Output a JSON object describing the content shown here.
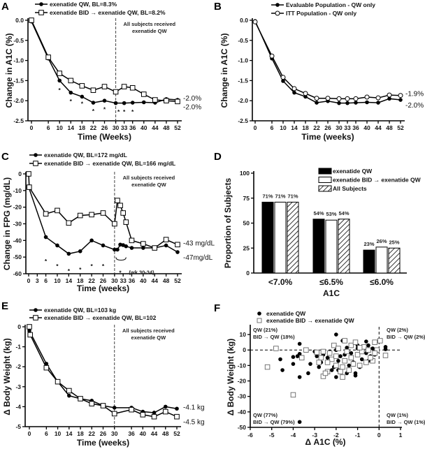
{
  "chart_data": [
    {
      "panel": "A",
      "type": "line",
      "xlabel": "Time (Weeks)",
      "ylabel": "Change in  A1C (%)",
      "xlim": [
        0,
        52
      ],
      "ylim": [
        -2.5,
        0
      ],
      "xticks": [
        0,
        6,
        10,
        14,
        18,
        22,
        26,
        30,
        33,
        36,
        40,
        44,
        48,
        52
      ],
      "yticks": [
        0,
        -0.5,
        -1,
        -1.5,
        -2,
        -2.5
      ],
      "ytick_labels": [
        "0.0",
        "-0.5",
        "-1.0",
        "-1.5",
        "-2.0",
        "-2.5"
      ],
      "vline": {
        "x": 30,
        "text": [
          "All subjects received",
          "exenatide QW"
        ]
      },
      "series": [
        {
          "name": "exenatide QW, BL=8.3%",
          "marker": "filled-circle",
          "x": [
            0,
            6,
            10,
            14,
            18,
            22,
            26,
            30,
            33,
            36,
            40,
            44,
            48,
            52
          ],
          "y": [
            -0.03,
            -0.95,
            -1.5,
            -1.8,
            -1.9,
            -2.05,
            -2.0,
            -2.06,
            -2.06,
            -2.05,
            -2.04,
            -2.05,
            -1.96,
            -1.98
          ],
          "end_label": "-2.0%"
        },
        {
          "name": "exenatide BID → exenatide QW, BL=8.2%",
          "marker": "open-square",
          "x": [
            0,
            6,
            10,
            14,
            18,
            22,
            26,
            30,
            33,
            36,
            40,
            44,
            48,
            52
          ],
          "y": [
            0,
            -0.92,
            -1.32,
            -1.5,
            -1.63,
            -1.74,
            -1.65,
            -1.78,
            -1.65,
            -1.68,
            -1.84,
            -1.98,
            -2.0,
            -2.02
          ],
          "end_label": "-2.0%"
        }
      ],
      "asterisks": [
        [
          10,
          -1.72
        ],
        [
          14,
          -2.0
        ],
        [
          18,
          -2.06
        ],
        [
          22,
          -2.24
        ],
        [
          26,
          -2.2
        ],
        [
          31,
          -2.26
        ],
        [
          33,
          -2.26
        ],
        [
          36,
          -2.26
        ]
      ]
    },
    {
      "panel": "B",
      "type": "line",
      "xlabel": "Time (weeks)",
      "ylabel": "Change in A1C (%)",
      "xlim": [
        0,
        52
      ],
      "ylim": [
        -2.5,
        0
      ],
      "xticks": [
        0,
        6,
        10,
        14,
        18,
        22,
        26,
        30,
        33,
        36,
        40,
        44,
        48,
        52
      ],
      "yticks": [
        0,
        -0.5,
        -1,
        -1.5,
        -2,
        -2.5
      ],
      "ytick_labels": [
        "0.0",
        "-0.5",
        "-1.0",
        "-1.5",
        "-2.0",
        "-2.5"
      ],
      "series": [
        {
          "name": "Evaluable Population - QW only",
          "marker": "filled-circle",
          "x": [
            0,
            6,
            10,
            14,
            18,
            22,
            26,
            30,
            33,
            36,
            40,
            44,
            48,
            52
          ],
          "y": [
            -0.02,
            -0.95,
            -1.51,
            -1.8,
            -1.9,
            -2.05,
            -2.01,
            -2.06,
            -2.06,
            -2.05,
            -2.04,
            -2.05,
            -1.95,
            -1.98
          ],
          "end_label": "-2.0%"
        },
        {
          "name": "ITT Population - QW only",
          "marker": "open-circle",
          "x": [
            0,
            6,
            10,
            14,
            18,
            22,
            26,
            30,
            33,
            36,
            40,
            44,
            48,
            52
          ],
          "y": [
            -0.04,
            -0.89,
            -1.42,
            -1.7,
            -1.82,
            -1.94,
            -1.94,
            -1.95,
            -1.95,
            -1.95,
            -1.91,
            -1.93,
            -1.86,
            -1.87
          ],
          "end_label": "-1.9%"
        }
      ]
    },
    {
      "panel": "C",
      "type": "line",
      "xlabel": "Time  (weeks)",
      "ylabel": "Change in FPG (mg/dL)",
      "xlim": [
        0,
        52
      ],
      "ylim": [
        -60,
        0
      ],
      "xticks": [
        0,
        3,
        6,
        10,
        14,
        18,
        22,
        26,
        30,
        33,
        36,
        40,
        44,
        48,
        52
      ],
      "yticks": [
        0,
        -10,
        -20,
        -30,
        -40,
        -50,
        -60
      ],
      "ytick_labels": [
        "0",
        "-10",
        "-20",
        "-30",
        "-40",
        "-50",
        "-60"
      ],
      "vline": {
        "x": 30,
        "text": [
          "All subjects received",
          "exenatide QW"
        ]
      },
      "series": [
        {
          "name": "exenatide QW, BL=172 mg/dL",
          "marker": "filled-circle",
          "x": [
            0,
            6,
            10,
            14,
            18,
            22,
            26,
            30,
            31,
            32,
            33,
            34,
            36,
            40,
            44,
            48,
            52
          ],
          "y": [
            -8,
            -38,
            -43,
            -48,
            -46.5,
            -40,
            -43,
            -45.5,
            -45.5,
            -42.5,
            -42.8,
            -43.5,
            -44.5,
            -44.5,
            -44.5,
            -43,
            -47
          ],
          "end_label": "-47mg/dL"
        },
        {
          "name": "exenatide  BID →  exenatide  QW, BL=166 mg/dL",
          "marker": "open-square",
          "x": [
            0,
            0.2,
            6,
            10,
            14,
            18,
            22,
            26,
            30,
            31,
            32,
            33,
            34,
            36,
            40,
            44,
            48,
            52
          ],
          "y": [
            0,
            -8,
            -24,
            -22,
            -29.5,
            -25,
            -24.5,
            -23.5,
            -30,
            -16,
            -19,
            -23.5,
            -29,
            -40,
            -42,
            -44.5,
            -39.5,
            -42.5
          ],
          "end_label": "-43 mg/dL"
        }
      ],
      "asterisks": [
        [
          6,
          -52
        ],
        [
          10,
          -55
        ],
        [
          14,
          -58
        ],
        [
          18,
          -57
        ],
        [
          22,
          -55
        ],
        [
          26,
          -55
        ],
        [
          32,
          -59
        ]
      ],
      "bracket_note": "(wk 30-34)"
    },
    {
      "panel": "D",
      "type": "bar",
      "xlabel": "A1C",
      "ylabel": "Proportion of  Subjects",
      "ylim": [
        0,
        100
      ],
      "yticks": [
        0,
        25,
        50,
        75,
        100
      ],
      "ytick_labels": [
        "0",
        "25",
        "50",
        "75",
        "100"
      ],
      "categories": [
        "<7.0%",
        "≤6.5%",
        "≤6.0%"
      ],
      "series": [
        {
          "name": "exenatide QW",
          "fill": "solid-black",
          "values": [
            71,
            54,
            23
          ],
          "labels": [
            "71%",
            "54%",
            "23%"
          ]
        },
        {
          "name": "exenatide BID → exenatide QW",
          "fill": "white",
          "values": [
            71,
            53,
            26
          ],
          "labels": [
            "71%",
            "53%",
            "26%"
          ]
        },
        {
          "name": "All Subjects",
          "fill": "hatched",
          "values": [
            71,
            54,
            25
          ],
          "labels": [
            "71%",
            "54%",
            "25%"
          ]
        }
      ],
      "legend": "top-right"
    },
    {
      "panel": "E",
      "type": "line",
      "xlabel": "Time (weeks)",
      "ylabel": "Δ Body Weight (kg)",
      "xlim": [
        0,
        52
      ],
      "ylim": [
        -5,
        0
      ],
      "xticks": [
        0,
        6,
        10,
        14,
        18,
        22,
        26,
        30,
        36,
        40,
        44,
        48,
        52
      ],
      "yticks": [
        0,
        -1,
        -2,
        -3,
        -4,
        -5
      ],
      "ytick_labels": [
        "0",
        "-1",
        "-2",
        "-3",
        "-4",
        "-5"
      ],
      "vline": {
        "x": 30,
        "text": [
          "All subjects received",
          "exenatide QW"
        ]
      },
      "series": [
        {
          "name": "exenatide QW, BL=103 kg",
          "marker": "filled-circle",
          "x": [
            0,
            6,
            10,
            14,
            18,
            22,
            26,
            30,
            36,
            40,
            44,
            48,
            52
          ],
          "y": [
            -0.2,
            -1.85,
            -2.75,
            -3.45,
            -3.6,
            -3.7,
            -3.95,
            -4.05,
            -4.05,
            -4.25,
            -4.3,
            -4.0,
            -4.1
          ],
          "end_label": "-4.1 kg"
        },
        {
          "name": "exenatide BID → exenatide QW, BL=102",
          "marker": "open-square",
          "x": [
            0,
            0.3,
            6,
            10,
            14,
            18,
            22,
            26,
            30,
            36,
            40,
            44,
            48,
            52
          ],
          "y": [
            0,
            -0.4,
            -2.05,
            -2.75,
            -3.2,
            -3.6,
            -3.85,
            -3.95,
            -4.35,
            -4.15,
            -4.4,
            -4.5,
            -4.25,
            -4.5
          ],
          "end_label": "-4.5 kg"
        }
      ]
    },
    {
      "panel": "F",
      "type": "scatter",
      "xlabel": "Δ A1C (%)",
      "ylabel": "Δ Body Weight (kg)",
      "xlim": [
        -6,
        1
      ],
      "ylim": [
        -50,
        15
      ],
      "xticks": [
        -6,
        -5,
        -4,
        -3,
        -2,
        -1,
        0,
        1
      ],
      "xtick_labels": [
        "-6",
        "-5",
        "-4",
        "-3",
        "-2",
        "-1",
        "0",
        "1"
      ],
      "yticks": [
        10,
        0,
        -10,
        -20,
        -30,
        -40,
        -50
      ],
      "ytick_labels": [
        "10",
        "0",
        "-10",
        "-20",
        "-30",
        "-40",
        "-50"
      ],
      "reference_lines": {
        "x": 0,
        "y": 0
      },
      "quadrant_labels": {
        "top_left": [
          "QW (21%)",
          "BID → QW (18%)"
        ],
        "top_right": [
          "QW (2%)",
          "BID → QW (2%)"
        ],
        "bottom_left": [
          "QW (77%)",
          "BID → QW (79%)"
        ],
        "bottom_right": [
          "QW (1%)",
          "BID → QW (1%)"
        ]
      },
      "series": [
        {
          "name": "exenatide QW",
          "marker": "filled-circle",
          "points": [
            [
              -2.0,
              10
            ],
            [
              -3.7,
              4
            ],
            [
              -4.6,
              -6
            ],
            [
              -4.5,
              -13
            ],
            [
              -4,
              -4.5
            ],
            [
              -4,
              -9
            ],
            [
              -3.7,
              -2.5
            ],
            [
              -3.8,
              -4
            ],
            [
              -3.3,
              -15
            ],
            [
              -3.2,
              -9
            ],
            [
              -3.7,
              -17.5
            ],
            [
              -3.7,
              -46.5
            ],
            [
              -2.8,
              -11
            ],
            [
              -3.0,
              -1
            ],
            [
              -2.9,
              -4
            ],
            [
              -2.1,
              -11
            ],
            [
              -2.2,
              -13
            ],
            [
              -2.0,
              -17.5
            ],
            [
              -1.9,
              -13
            ],
            [
              -1.8,
              -14
            ],
            [
              -1.5,
              -15
            ],
            [
              -1.1,
              -15
            ],
            [
              -1.1,
              -16.5
            ],
            [
              -1.7,
              6
            ],
            [
              -0.6,
              5.5
            ],
            [
              -0.5,
              3
            ],
            [
              -2.3,
              -1
            ],
            [
              -2.0,
              0
            ],
            [
              -1.5,
              1.5
            ],
            [
              -1.3,
              -2
            ],
            [
              -1.0,
              1
            ],
            [
              -0.8,
              0
            ],
            [
              -0.4,
              -4
            ],
            [
              -0.2,
              -3
            ],
            [
              -0.3,
              1
            ],
            [
              0.3,
              2
            ],
            [
              0.3,
              0.5
            ],
            [
              -1.2,
              -8
            ],
            [
              -0.5,
              -7
            ],
            [
              -0.8,
              -6
            ],
            [
              -1.6,
              -3
            ],
            [
              -2.6,
              -3
            ],
            [
              -2.4,
              -5
            ],
            [
              -1.9,
              -7
            ],
            [
              -1.4,
              -10
            ],
            [
              -0.9,
              -11
            ],
            [
              -0.6,
              -2
            ],
            [
              -1.0,
              3
            ],
            [
              -2.7,
              -8
            ],
            [
              -1.8,
              -4
            ]
          ]
        },
        {
          "name": "exenatide BID → exenatide QW",
          "marker": "open-square",
          "points": [
            [
              -4.8,
              1
            ],
            [
              -5.2,
              -11
            ],
            [
              -4,
              -29
            ],
            [
              -3.4,
              0
            ],
            [
              -3.6,
              -5
            ],
            [
              -2.6,
              -17
            ],
            [
              -2.4,
              -14
            ],
            [
              -2.5,
              -15
            ],
            [
              -2.8,
              -8
            ],
            [
              -2.9,
              -1.5
            ],
            [
              -2.7,
              -5
            ],
            [
              -2.1,
              3
            ],
            [
              -1.6,
              6
            ],
            [
              -1.3,
              3
            ],
            [
              -0.7,
              2
            ],
            [
              0.05,
              6
            ],
            [
              -0.2,
              5
            ],
            [
              0.3,
              -3.5
            ],
            [
              -1.7,
              -17.5
            ],
            [
              -1.8,
              -14
            ],
            [
              -1.4,
              -13
            ],
            [
              -1.2,
              -9
            ],
            [
              -0.9,
              -10
            ],
            [
              -0.6,
              -8
            ],
            [
              -0.3,
              -7
            ],
            [
              -2.2,
              -6
            ],
            [
              -2.0,
              -4
            ],
            [
              -1.5,
              -1
            ],
            [
              -1.0,
              -3
            ],
            [
              -0.5,
              0
            ],
            [
              -0.1,
              0
            ],
            [
              -2.3,
              -2
            ],
            [
              -1.9,
              1
            ],
            [
              -1.1,
              5
            ],
            [
              -0.8,
              -1
            ],
            [
              -1.6,
              -7
            ],
            [
              -2.4,
              -8
            ],
            [
              -1.3,
              -5
            ],
            [
              -0.4,
              -5
            ],
            [
              -2.0,
              -10
            ],
            [
              -1.7,
              -11
            ],
            [
              -2.6,
              -1
            ],
            [
              -0.9,
              1.5
            ],
            [
              -0.2,
              -2
            ]
          ]
        }
      ]
    }
  ]
}
